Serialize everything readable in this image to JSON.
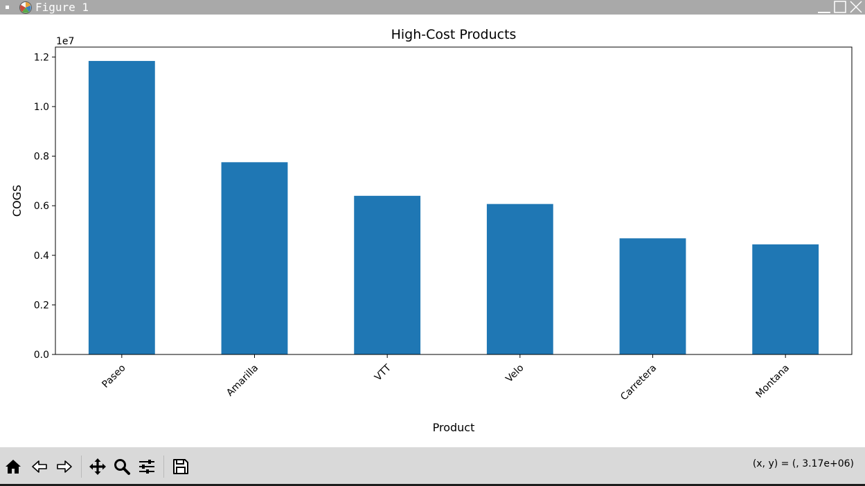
{
  "window": {
    "title": "Figure 1",
    "icons": {
      "menu": "window-menu-icon",
      "app": "matplotlib-icon",
      "minimize": "minimize-icon",
      "maximize": "maximize-icon",
      "close": "close-icon"
    }
  },
  "chart_data": {
    "type": "bar",
    "title": "High-Cost Products",
    "xlabel": "Product",
    "ylabel": "COGS",
    "offset_label": "1e7",
    "categories": [
      "Paseo",
      "Amarilla",
      "VTT",
      "Velo",
      "Carretera",
      "Montana"
    ],
    "values": [
      11840000,
      7755000,
      6400000,
      6070000,
      4685000,
      4440000
    ],
    "ylim": [
      0,
      12400000
    ],
    "yticks": [
      0,
      2000000,
      4000000,
      6000000,
      8000000,
      10000000,
      12000000
    ],
    "ytick_labels": [
      "0.0",
      "0.2",
      "0.4",
      "0.6",
      "0.8",
      "1.0",
      "1.2"
    ],
    "bar_color": "#1f77b4",
    "grid": false,
    "legend": false
  },
  "toolbar": {
    "buttons": [
      {
        "name": "home-button",
        "icon": "home-icon"
      },
      {
        "name": "back-button",
        "icon": "arrow-left-icon"
      },
      {
        "name": "forward-button",
        "icon": "arrow-right-icon"
      },
      {
        "name": "pan-button",
        "icon": "move-icon"
      },
      {
        "name": "zoom-button",
        "icon": "magnifier-icon"
      },
      {
        "name": "configure-subplots-button",
        "icon": "sliders-icon"
      },
      {
        "name": "save-button",
        "icon": "floppy-disk-icon"
      }
    ],
    "coordinates": "(x, y) = (, 3.17e+06)"
  }
}
